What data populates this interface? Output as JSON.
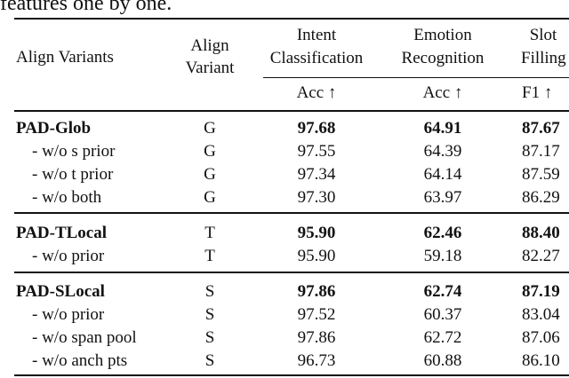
{
  "caption_fragment": "features one by one.",
  "header": {
    "col1": "Align Variants",
    "col2_line1": "Align",
    "col2_line2": "Variant",
    "intent_line1": "Intent",
    "intent_line2": "Classification",
    "emotion_line1": "Emotion",
    "emotion_line2": "Recognition",
    "slot_line1": "Slot",
    "slot_line2": "Filling",
    "intent_metric": "Acc ↑",
    "emotion_metric": "Acc ↑",
    "slot_metric": "F1 ↑"
  },
  "groups": [
    {
      "rows": [
        {
          "name": "PAD-Glob",
          "variant": "G",
          "intent": "97.68",
          "emotion": "64.91",
          "slot": "87.67",
          "bold": true
        },
        {
          "name": "- w/o s prior",
          "variant": "G",
          "intent": "97.55",
          "emotion": "64.39",
          "slot": "87.17"
        },
        {
          "name": "- w/o t prior",
          "variant": "G",
          "intent": "97.34",
          "emotion": "64.14",
          "slot": "87.59"
        },
        {
          "name": "- w/o both",
          "variant": "G",
          "intent": "97.30",
          "emotion": "63.97",
          "slot": "86.29"
        }
      ]
    },
    {
      "rows": [
        {
          "name": "PAD-TLocal",
          "variant": "T",
          "intent": "95.90",
          "emotion": "62.46",
          "slot": "88.40",
          "bold": true
        },
        {
          "name": "- w/o prior",
          "variant": "T",
          "intent": "95.90",
          "emotion": "59.18",
          "slot": "82.27"
        }
      ]
    },
    {
      "rows": [
        {
          "name": "PAD-SLocal",
          "variant": "S",
          "intent": "97.86",
          "emotion": "62.74",
          "slot": "87.19",
          "bold": true
        },
        {
          "name": "- w/o prior",
          "variant": "S",
          "intent": "97.52",
          "emotion": "60.37",
          "slot": "83.04"
        },
        {
          "name": "- w/o span pool",
          "variant": "S",
          "intent": "97.86",
          "emotion": "62.72",
          "slot": "87.06"
        },
        {
          "name": "- w/o anch pts",
          "variant": "S",
          "intent": "96.73",
          "emotion": "60.88",
          "slot": "86.10"
        }
      ]
    }
  ]
}
